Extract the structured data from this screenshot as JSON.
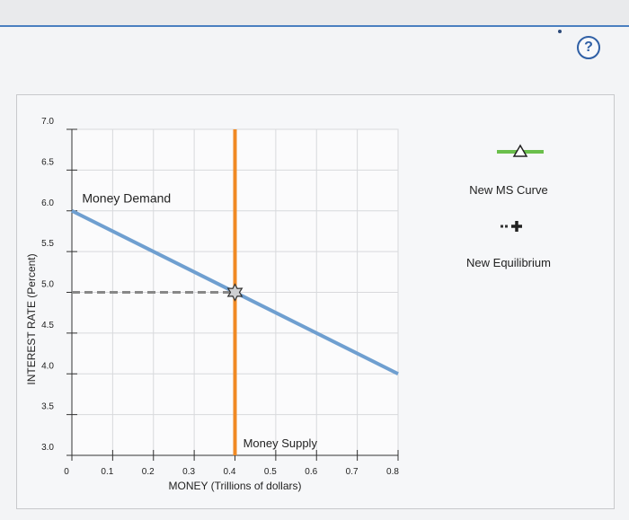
{
  "help": {
    "label": "?"
  },
  "chart_data": {
    "type": "line",
    "xlabel": "MONEY (Trillions of dollars)",
    "ylabel": "INTEREST RATE (Percent)",
    "xlim": [
      0,
      0.8
    ],
    "ylim": [
      3.0,
      7.0
    ],
    "x_ticks": [
      "0",
      "0.1",
      "0.2",
      "0.3",
      "0.4",
      "0.5",
      "0.6",
      "0.7",
      "0.8"
    ],
    "y_ticks": [
      "3.0",
      "3.5",
      "4.0",
      "4.5",
      "5.0",
      "5.5",
      "6.0",
      "6.5",
      "7.0"
    ],
    "grid": true,
    "series": [
      {
        "name": "Money Demand",
        "color": "#6f9fd0",
        "x": [
          0,
          0.8
        ],
        "y": [
          6.0,
          4.0
        ]
      },
      {
        "name": "Money Supply",
        "color": "#f08a24",
        "x": [
          0.4,
          0.4
        ],
        "y": [
          3.0,
          7.0
        ]
      }
    ],
    "equilibrium": {
      "x": 0.4,
      "y": 5.0,
      "marker": "star"
    },
    "legend": {
      "position": "right",
      "items": [
        {
          "label": "New MS Curve",
          "color": "#6abf4b",
          "marker": "triangle"
        },
        {
          "label": "New Equilibrium",
          "color": "#222222",
          "marker": "plus"
        }
      ]
    }
  }
}
